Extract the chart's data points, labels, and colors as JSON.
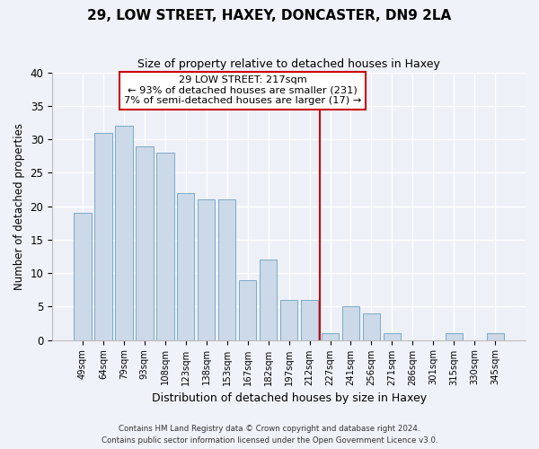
{
  "title": "29, LOW STREET, HAXEY, DONCASTER, DN9 2LA",
  "subtitle": "Size of property relative to detached houses in Haxey",
  "xlabel": "Distribution of detached houses by size in Haxey",
  "ylabel": "Number of detached properties",
  "bar_color": "#ccd9e8",
  "bar_edge_color": "#7aaac8",
  "background_color": "#eef0f8",
  "grid_color": "#ffffff",
  "categories": [
    "49sqm",
    "64sqm",
    "79sqm",
    "93sqm",
    "108sqm",
    "123sqm",
    "138sqm",
    "153sqm",
    "167sqm",
    "182sqm",
    "197sqm",
    "212sqm",
    "227sqm",
    "241sqm",
    "256sqm",
    "271sqm",
    "286sqm",
    "301sqm",
    "315sqm",
    "330sqm",
    "345sqm"
  ],
  "values": [
    19,
    31,
    32,
    29,
    28,
    22,
    21,
    21,
    9,
    12,
    6,
    6,
    1,
    5,
    4,
    1,
    0,
    0,
    1,
    0,
    1
  ],
  "ylim": [
    0,
    40
  ],
  "yticks": [
    0,
    5,
    10,
    15,
    20,
    25,
    30,
    35,
    40
  ],
  "vline_x": 11.5,
  "vline_color": "#cc0000",
  "annotation_title": "29 LOW STREET: 217sqm",
  "annotation_line1": "← 93% of detached houses are smaller (231)",
  "annotation_line2": "7% of semi-detached houses are larger (17) →",
  "footnote1": "Contains HM Land Registry data © Crown copyright and database right 2024.",
  "footnote2": "Contains public sector information licensed under the Open Government Licence v3.0."
}
